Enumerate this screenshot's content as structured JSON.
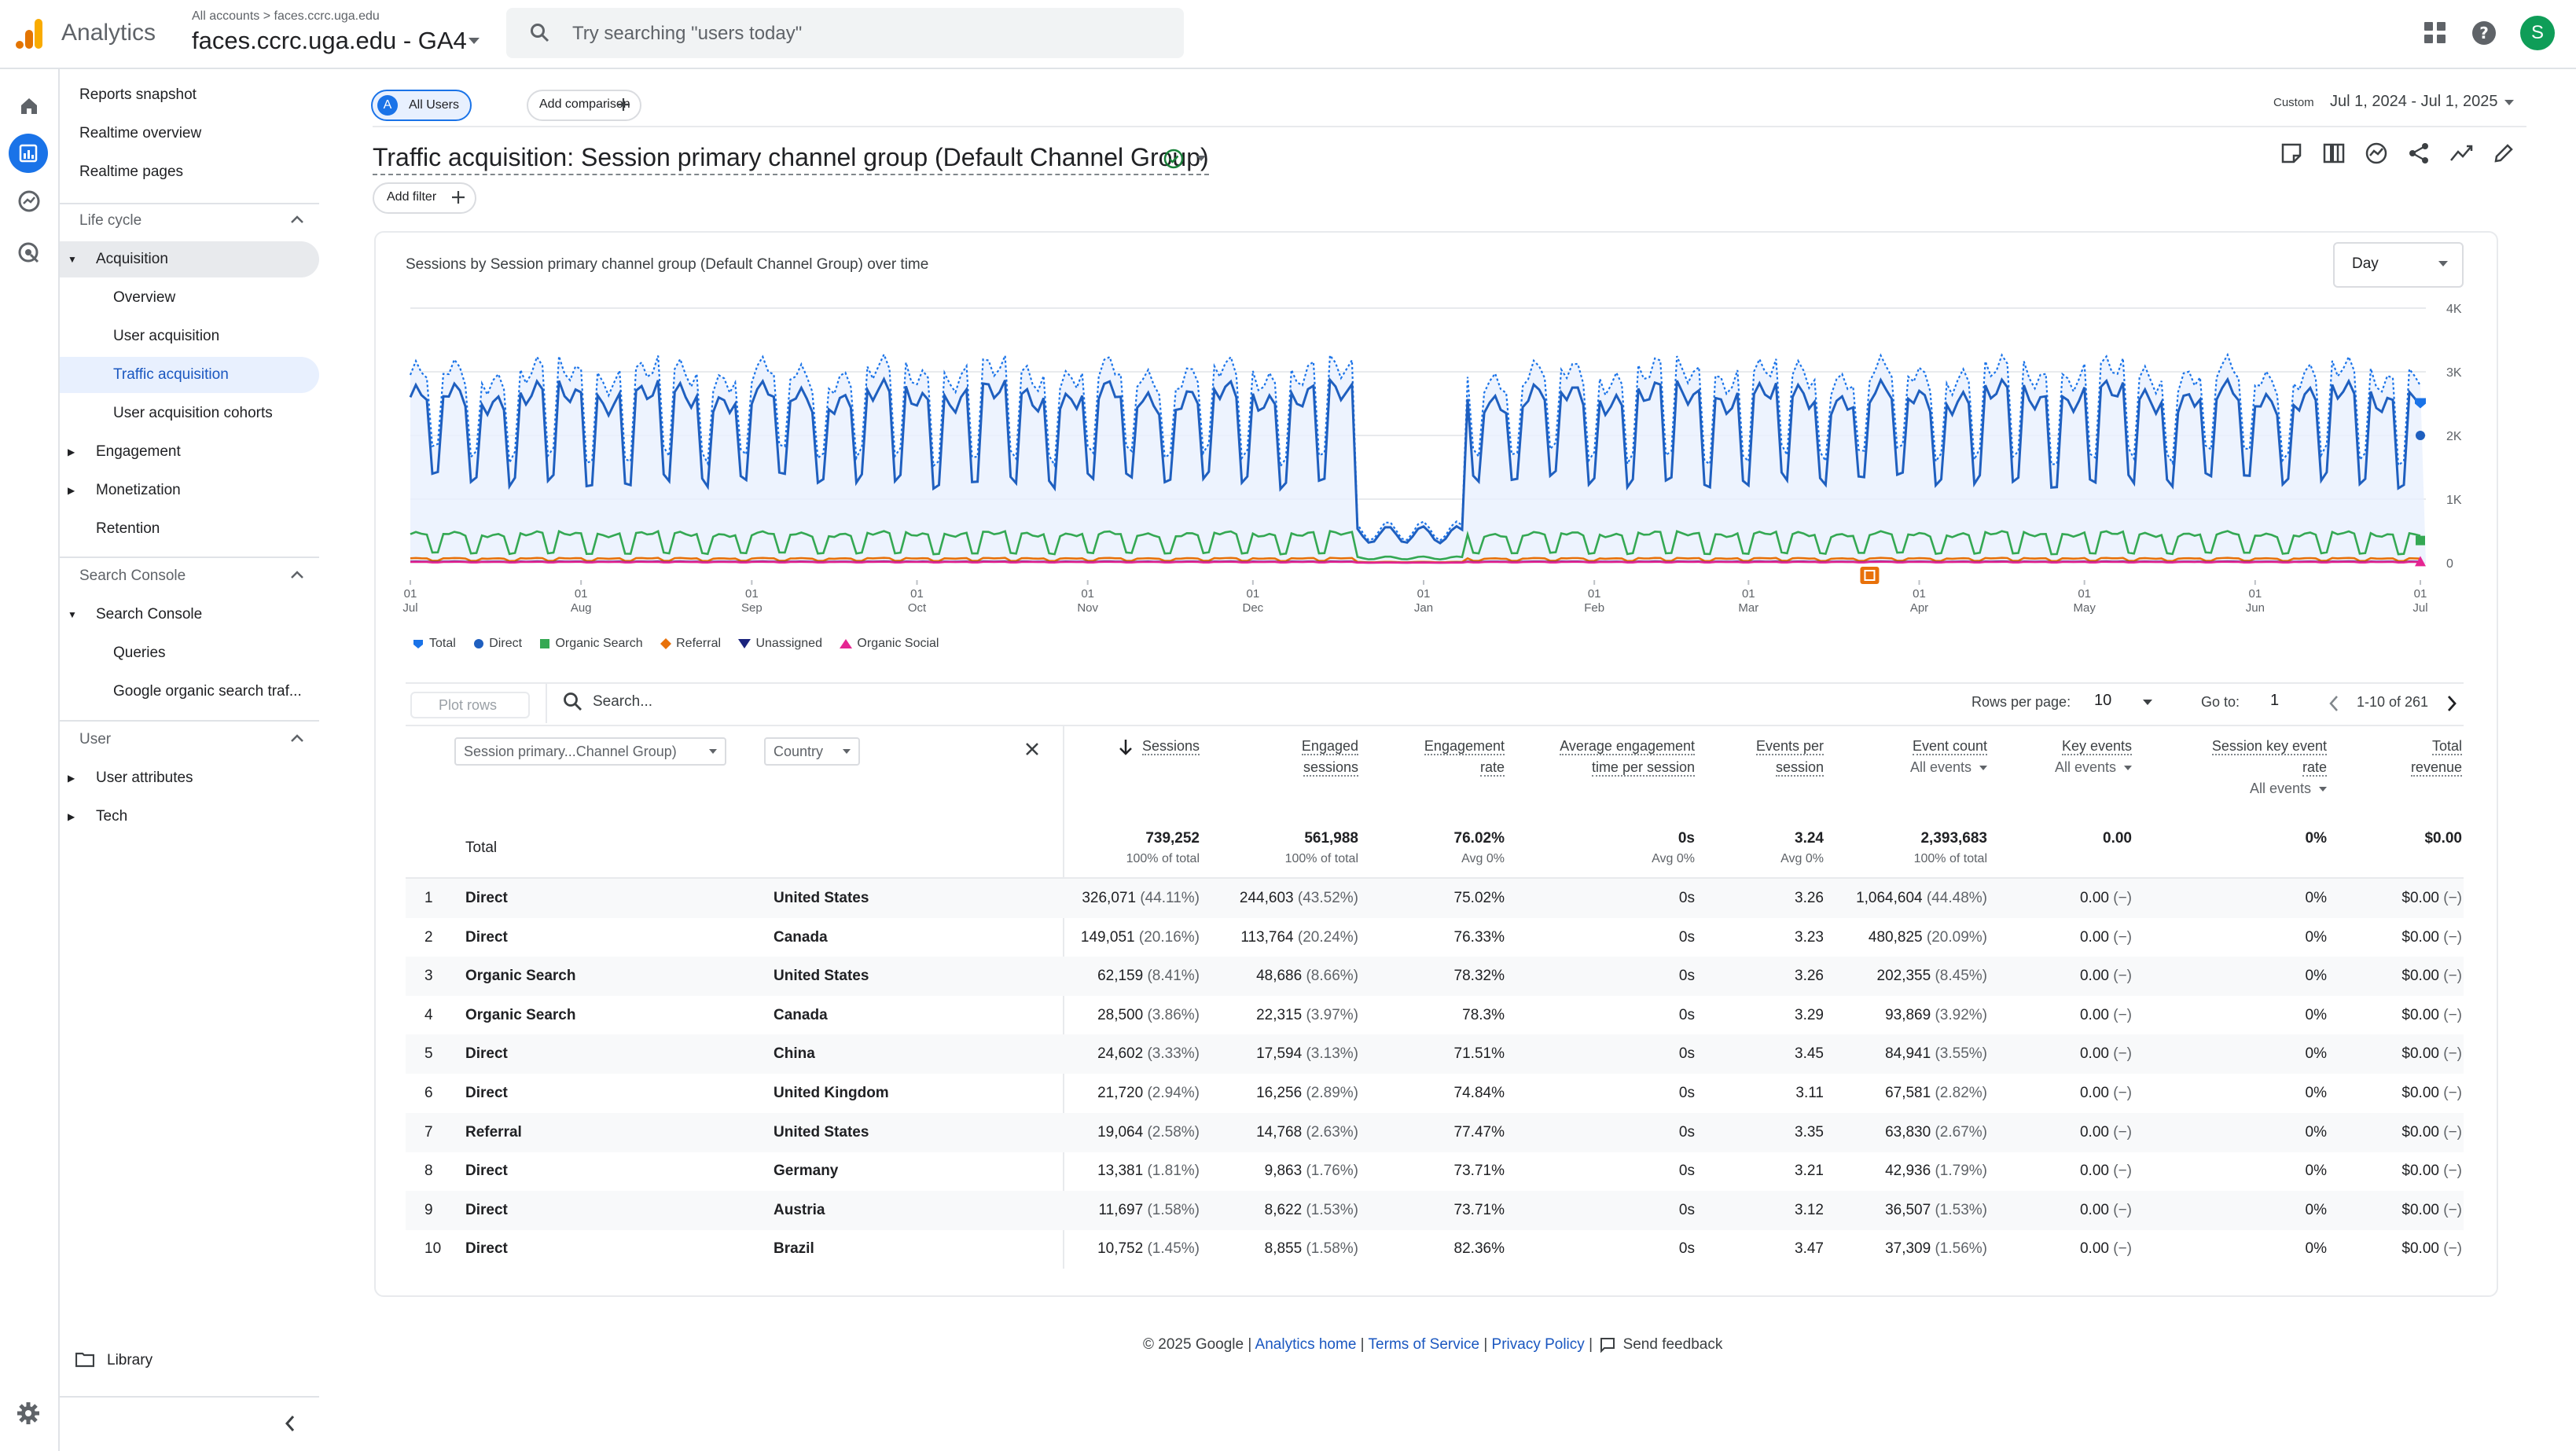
{
  "header": {
    "app_name": "Analytics",
    "breadcrumb": "All accounts  >  faces.ccrc.uga.edu",
    "property_name": "faces.ccrc.uga.edu - GA4",
    "search_placeholder": "Try searching \"users today\"",
    "avatar_letter": "S",
    "icons": [
      "apps-grid-icon",
      "help-icon"
    ]
  },
  "rail": {
    "icons": [
      "home-icon",
      "reports-icon",
      "explore-icon",
      "advertising-icon"
    ],
    "active": "reports-icon"
  },
  "nav": {
    "top_items": [
      "Reports snapshot",
      "Realtime overview",
      "Realtime pages"
    ],
    "sections": [
      {
        "title": "Life cycle",
        "items": [
          {
            "label": "Acquisition",
            "expanded": true,
            "children": [
              "Overview",
              "User acquisition",
              "Traffic acquisition",
              "User acquisition cohorts"
            ]
          },
          {
            "label": "Engagement",
            "expanded": false
          },
          {
            "label": "Monetization",
            "expanded": false
          },
          {
            "label": "Retention"
          }
        ]
      },
      {
        "title": "Search Console",
        "items": [
          {
            "label": "Search Console",
            "expanded": true,
            "children": [
              "Queries",
              "Google organic search traf..."
            ]
          }
        ]
      },
      {
        "title": "User",
        "items": [
          {
            "label": "User attributes",
            "expanded": false
          },
          {
            "label": "Tech",
            "expanded": false
          }
        ]
      }
    ],
    "selected": "Traffic acquisition",
    "library": "Library"
  },
  "report": {
    "segment_chip": "All Users",
    "segment_letter": "A",
    "add_comparison": "Add comparison",
    "date_label": "Custom",
    "date_range": "Jul 1, 2024 - Jul 1, 2025",
    "title": "Traffic acquisition: Session primary channel group (Default Channel Group)",
    "add_filter": "Add filter",
    "chart_title": "Sessions by Session primary channel group (Default Channel Group) over time",
    "granularity": "Day"
  },
  "chart_data": {
    "type": "line",
    "title": "Sessions by Session primary channel group (Default Channel Group) over time",
    "x": [
      "01 Jul",
      "01 Aug",
      "01 Sep",
      "01 Oct",
      "01 Nov",
      "01 Dec",
      "01 Jan",
      "01 Feb",
      "01 Mar",
      "01 Apr",
      "01 May",
      "01 Jun",
      "01 Jul"
    ],
    "x_month_label": [
      "Jul",
      "Aug",
      "Sep",
      "Oct",
      "Nov",
      "Dec",
      "Jan",
      "Feb",
      "Mar",
      "Apr",
      "May",
      "Jun",
      "Jul"
    ],
    "ylim": [
      0,
      4000
    ],
    "yticks": [
      "0",
      "1K",
      "2K",
      "3K",
      "4K"
    ],
    "grid": true,
    "legend_position": "bottom-left",
    "series": [
      {
        "name": "Total",
        "color": "#1a73e8",
        "weekday_level": 2950,
        "weekend_level": 1700,
        "style": "dotted-area"
      },
      {
        "name": "Direct",
        "color": "#1f5fbf",
        "weekday_level": 2600,
        "weekend_level": 1300
      },
      {
        "name": "Organic Search",
        "color": "#34a853",
        "weekday_level": 450,
        "weekend_level": 150
      },
      {
        "name": "Referral",
        "color": "#e8710a",
        "weekday_level": 70,
        "weekend_level": 30
      },
      {
        "name": "Unassigned",
        "color": "#1a237e",
        "weekday_level": 20,
        "weekend_level": 10
      },
      {
        "name": "Organic Social",
        "color": "#e52592",
        "weekday_level": 15,
        "weekend_level": 5
      }
    ],
    "holiday_dip": {
      "from": "Dec 20",
      "to": "Jan 8",
      "level": 500
    },
    "annotation_marker": "Mar"
  },
  "table": {
    "plot_rows": "Plot rows",
    "search_placeholder": "Search...",
    "rows_per_page_label": "Rows per page:",
    "rows_per_page": "10",
    "goto_label": "Go to:",
    "goto_value": "1",
    "page_range": "1-10 of 261",
    "dim1": "Session primary...Channel Group)",
    "dim2": "Country",
    "columns": [
      {
        "label": [
          "Sessions"
        ],
        "sub": ""
      },
      {
        "label": [
          "Engaged",
          "sessions"
        ],
        "sub": ""
      },
      {
        "label": [
          "Engagement",
          "rate"
        ],
        "sub": ""
      },
      {
        "label": [
          "Average engagement",
          "time per session"
        ],
        "sub": ""
      },
      {
        "label": [
          "Events per",
          "session"
        ],
        "sub": ""
      },
      {
        "label": [
          "Event count"
        ],
        "sub": "All events"
      },
      {
        "label": [
          "Key events"
        ],
        "sub": "All events"
      },
      {
        "label": [
          "Session key event",
          "rate"
        ],
        "sub": "All events"
      },
      {
        "label": [
          "Total",
          "revenue"
        ],
        "sub": ""
      }
    ],
    "total_label": "Total",
    "totals": [
      {
        "v": "739,252",
        "s": "100% of total"
      },
      {
        "v": "561,988",
        "s": "100% of total"
      },
      {
        "v": "76.02%",
        "s": "Avg 0%"
      },
      {
        "v": "0s",
        "s": "Avg 0%"
      },
      {
        "v": "3.24",
        "s": "Avg 0%"
      },
      {
        "v": "2,393,683",
        "s": "100% of total"
      },
      {
        "v": "0.00",
        "s": ""
      },
      {
        "v": "0%",
        "s": ""
      },
      {
        "v": "$0.00",
        "s": ""
      }
    ],
    "rows": [
      {
        "n": "1",
        "ch": "Direct",
        "co": "United States",
        "ses": "326,071",
        "sesp": "(44.11%)",
        "eng": "244,603",
        "engp": "(43.52%)",
        "er": "75.02%",
        "avg": "0s",
        "eps": "3.26",
        "ec": "1,064,604",
        "ecp": "(44.48%)",
        "ke": "0.00",
        "kep": "(−)",
        "skr": "0%",
        "rev": "$0.00",
        "revp": "(−)"
      },
      {
        "n": "2",
        "ch": "Direct",
        "co": "Canada",
        "ses": "149,051",
        "sesp": "(20.16%)",
        "eng": "113,764",
        "engp": "(20.24%)",
        "er": "76.33%",
        "avg": "0s",
        "eps": "3.23",
        "ec": "480,825",
        "ecp": "(20.09%)",
        "ke": "0.00",
        "kep": "(−)",
        "skr": "0%",
        "rev": "$0.00",
        "revp": "(−)"
      },
      {
        "n": "3",
        "ch": "Organic Search",
        "co": "United States",
        "ses": "62,159",
        "sesp": "(8.41%)",
        "eng": "48,686",
        "engp": "(8.66%)",
        "er": "78.32%",
        "avg": "0s",
        "eps": "3.26",
        "ec": "202,355",
        "ecp": "(8.45%)",
        "ke": "0.00",
        "kep": "(−)",
        "skr": "0%",
        "rev": "$0.00",
        "revp": "(−)"
      },
      {
        "n": "4",
        "ch": "Organic Search",
        "co": "Canada",
        "ses": "28,500",
        "sesp": "(3.86%)",
        "eng": "22,315",
        "engp": "(3.97%)",
        "er": "78.3%",
        "avg": "0s",
        "eps": "3.29",
        "ec": "93,869",
        "ecp": "(3.92%)",
        "ke": "0.00",
        "kep": "(−)",
        "skr": "0%",
        "rev": "$0.00",
        "revp": "(−)"
      },
      {
        "n": "5",
        "ch": "Direct",
        "co": "China",
        "ses": "24,602",
        "sesp": "(3.33%)",
        "eng": "17,594",
        "engp": "(3.13%)",
        "er": "71.51%",
        "avg": "0s",
        "eps": "3.45",
        "ec": "84,941",
        "ecp": "(3.55%)",
        "ke": "0.00",
        "kep": "(−)",
        "skr": "0%",
        "rev": "$0.00",
        "revp": "(−)"
      },
      {
        "n": "6",
        "ch": "Direct",
        "co": "United Kingdom",
        "ses": "21,720",
        "sesp": "(2.94%)",
        "eng": "16,256",
        "engp": "(2.89%)",
        "er": "74.84%",
        "avg": "0s",
        "eps": "3.11",
        "ec": "67,581",
        "ecp": "(2.82%)",
        "ke": "0.00",
        "kep": "(−)",
        "skr": "0%",
        "rev": "$0.00",
        "revp": "(−)"
      },
      {
        "n": "7",
        "ch": "Referral",
        "co": "United States",
        "ses": "19,064",
        "sesp": "(2.58%)",
        "eng": "14,768",
        "engp": "(2.63%)",
        "er": "77.47%",
        "avg": "0s",
        "eps": "3.35",
        "ec": "63,830",
        "ecp": "(2.67%)",
        "ke": "0.00",
        "kep": "(−)",
        "skr": "0%",
        "rev": "$0.00",
        "revp": "(−)"
      },
      {
        "n": "8",
        "ch": "Direct",
        "co": "Germany",
        "ses": "13,381",
        "sesp": "(1.81%)",
        "eng": "9,863",
        "engp": "(1.76%)",
        "er": "73.71%",
        "avg": "0s",
        "eps": "3.21",
        "ec": "42,936",
        "ecp": "(1.79%)",
        "ke": "0.00",
        "kep": "(−)",
        "skr": "0%",
        "rev": "$0.00",
        "revp": "(−)"
      },
      {
        "n": "9",
        "ch": "Direct",
        "co": "Austria",
        "ses": "11,697",
        "sesp": "(1.58%)",
        "eng": "8,622",
        "engp": "(1.53%)",
        "er": "73.71%",
        "avg": "0s",
        "eps": "3.12",
        "ec": "36,507",
        "ecp": "(1.53%)",
        "ke": "0.00",
        "kep": "(−)",
        "skr": "0%",
        "rev": "$0.00",
        "revp": "(−)"
      },
      {
        "n": "10",
        "ch": "Direct",
        "co": "Brazil",
        "ses": "10,752",
        "sesp": "(1.45%)",
        "eng": "8,855",
        "engp": "(1.58%)",
        "er": "82.36%",
        "avg": "0s",
        "eps": "3.47",
        "ec": "37,309",
        "ecp": "(1.56%)",
        "ke": "0.00",
        "kep": "(−)",
        "skr": "0%",
        "rev": "$0.00",
        "revp": "(−)"
      }
    ]
  },
  "footer": {
    "copyright": "© 2025 Google |",
    "links": [
      "Analytics home",
      "Terms of Service",
      "Privacy Policy"
    ],
    "sep": "|",
    "feedback": "Send feedback"
  }
}
